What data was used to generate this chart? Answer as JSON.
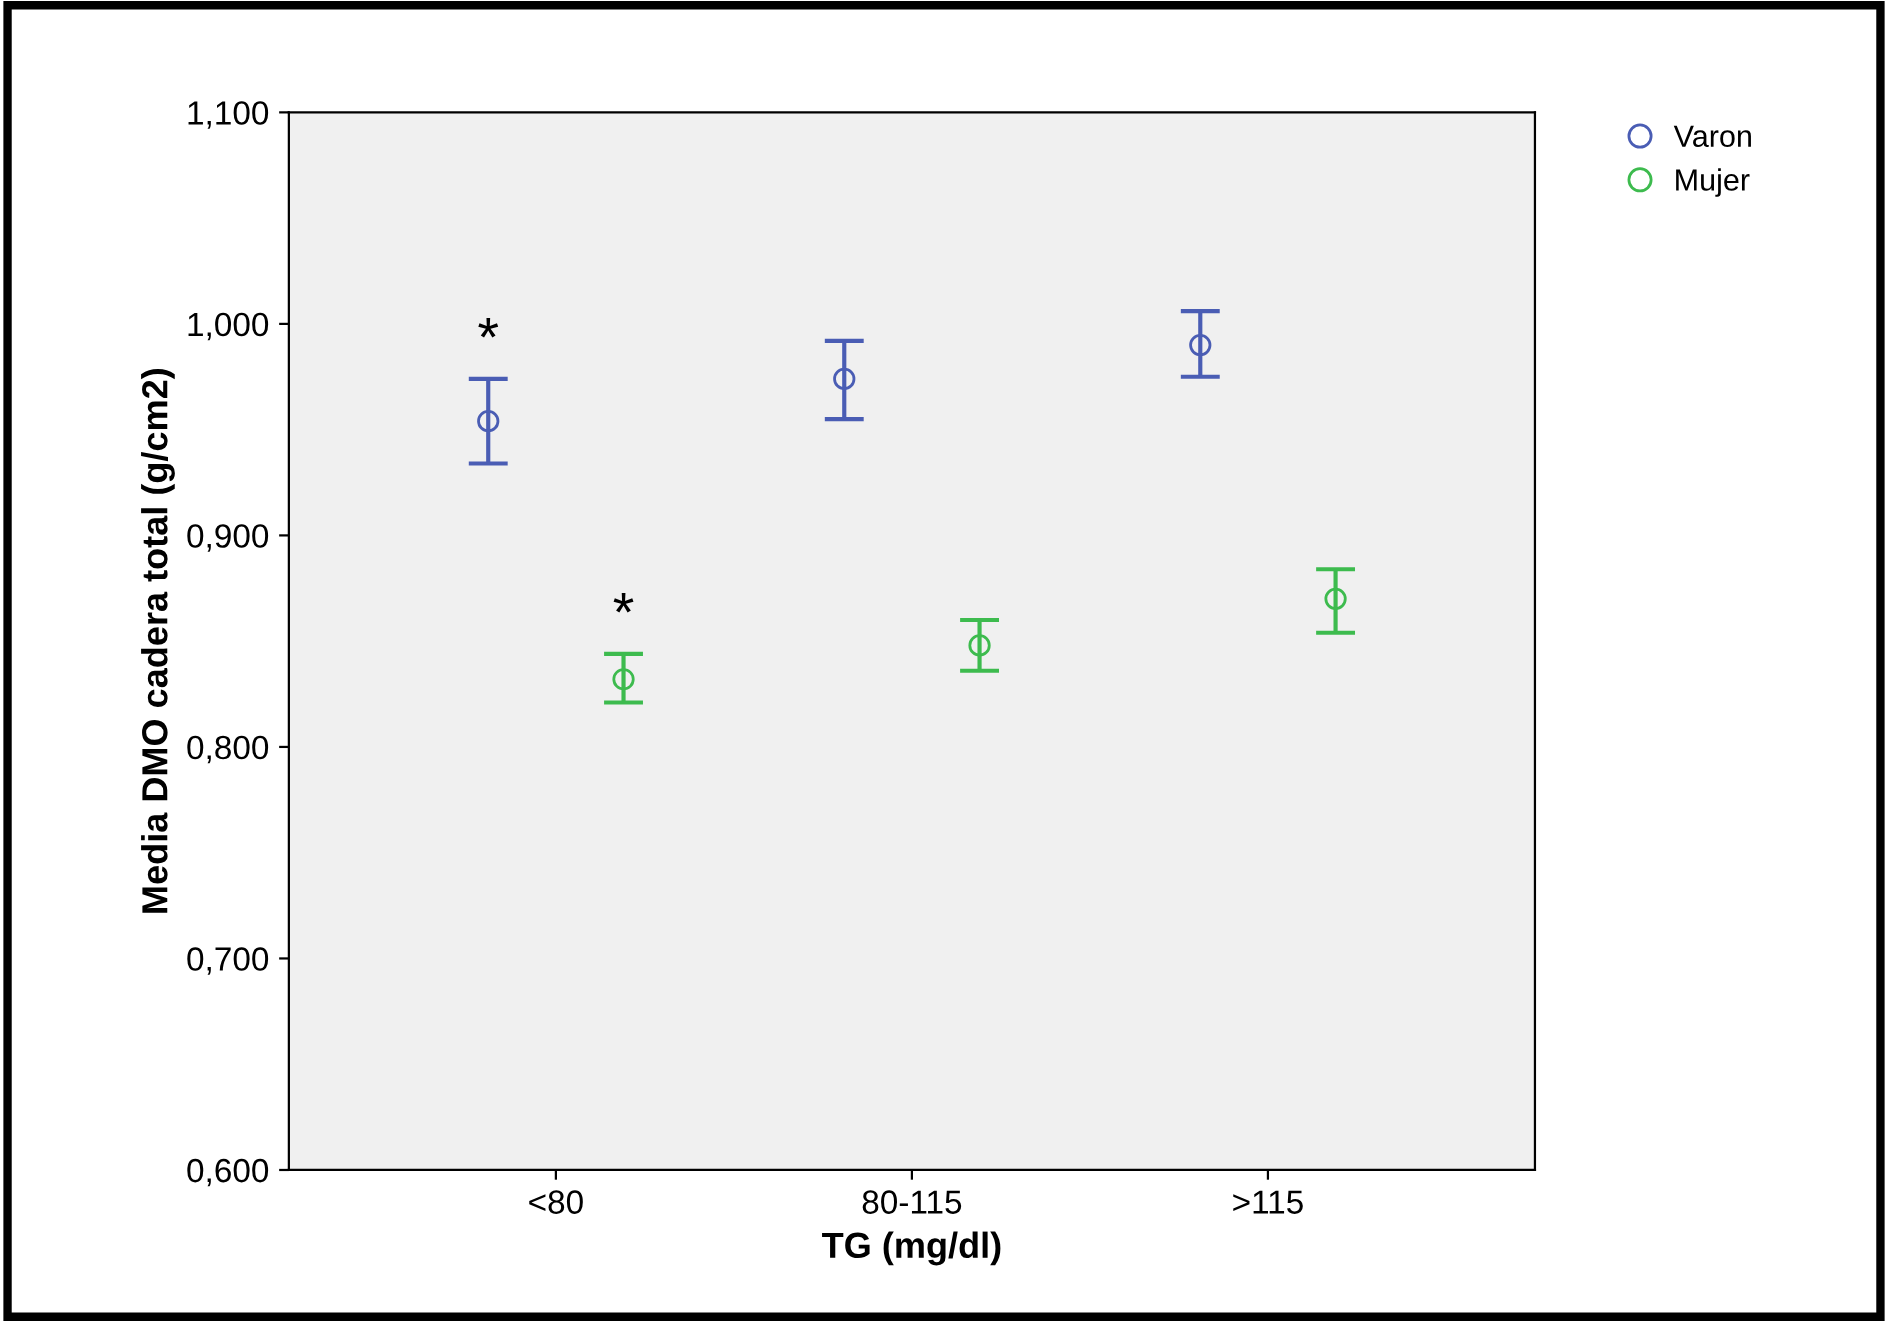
{
  "chart_data": {
    "type": "scatter",
    "xlabel": "TG (mg/dl)",
    "ylabel": "Media DMO cadera total (g/cm2)",
    "categories": [
      "<80",
      "80-115",
      ">115"
    ],
    "series": [
      {
        "name": "Varon",
        "color": "#4a5db4",
        "values": [
          0.954,
          0.974,
          0.99
        ],
        "errors": [
          [
            0.934,
            0.974
          ],
          [
            0.955,
            0.992
          ],
          [
            0.975,
            1.006
          ]
        ]
      },
      {
        "name": "Mujer",
        "color": "#3dbb4e",
        "values": [
          0.832,
          0.848,
          0.87
        ],
        "errors": [
          [
            0.821,
            0.844
          ],
          [
            0.836,
            0.86
          ],
          [
            0.854,
            0.884
          ]
        ]
      }
    ],
    "annotations": [
      "*",
      "*"
    ],
    "ylim": [
      0.6,
      1.1
    ],
    "yticks": [
      {
        "value": 0.6,
        "label": "0,600"
      },
      {
        "value": 0.7,
        "label": "0,700"
      },
      {
        "value": 0.8,
        "label": "0,800"
      },
      {
        "value": 0.9,
        "label": "0,900"
      },
      {
        "value": 1.0,
        "label": "1,000"
      },
      {
        "value": 1.1,
        "label": "1,100"
      }
    ],
    "marker": "circle",
    "legend": "top right",
    "grid": false
  }
}
